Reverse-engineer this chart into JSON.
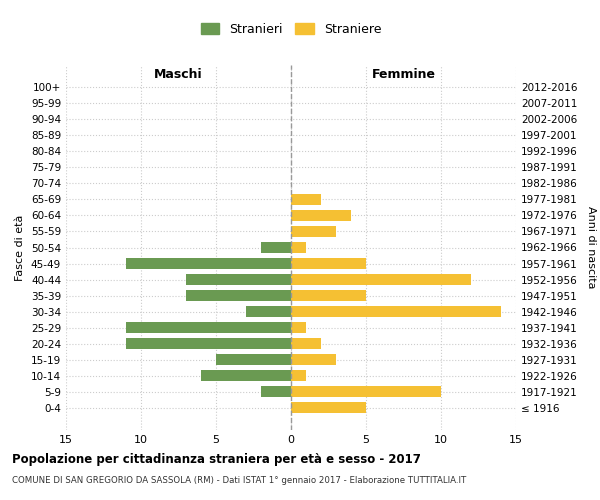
{
  "age_groups": [
    "100+",
    "95-99",
    "90-94",
    "85-89",
    "80-84",
    "75-79",
    "70-74",
    "65-69",
    "60-64",
    "55-59",
    "50-54",
    "45-49",
    "40-44",
    "35-39",
    "30-34",
    "25-29",
    "20-24",
    "15-19",
    "10-14",
    "5-9",
    "0-4"
  ],
  "birth_years": [
    "≤ 1916",
    "1917-1921",
    "1922-1926",
    "1927-1931",
    "1932-1936",
    "1937-1941",
    "1942-1946",
    "1947-1951",
    "1952-1956",
    "1957-1961",
    "1962-1966",
    "1967-1971",
    "1972-1976",
    "1977-1981",
    "1982-1986",
    "1987-1991",
    "1992-1996",
    "1997-2001",
    "2002-2006",
    "2007-2011",
    "2012-2016"
  ],
  "males": [
    0,
    0,
    0,
    0,
    0,
    0,
    0,
    0,
    0,
    0,
    2,
    11,
    7,
    7,
    3,
    11,
    11,
    5,
    6,
    2,
    0
  ],
  "females": [
    0,
    0,
    0,
    0,
    0,
    0,
    0,
    2,
    4,
    3,
    1,
    5,
    12,
    5,
    14,
    1,
    2,
    3,
    1,
    10,
    5
  ],
  "male_color": "#6a9a52",
  "female_color": "#f5c033",
  "title": "Popolazione per cittadinanza straniera per età e sesso - 2017",
  "subtitle": "COMUNE DI SAN GREGORIO DA SASSOLA (RM) - Dati ISTAT 1° gennaio 2017 - Elaborazione TUTTITALIA.IT",
  "xlabel_left": "Maschi",
  "xlabel_right": "Femmine",
  "ylabel_left": "Fasce di età",
  "ylabel_right": "Anni di nascita",
  "legend_male": "Stranieri",
  "legend_female": "Straniere",
  "xlim": 15,
  "background_color": "#ffffff",
  "grid_color": "#cccccc"
}
